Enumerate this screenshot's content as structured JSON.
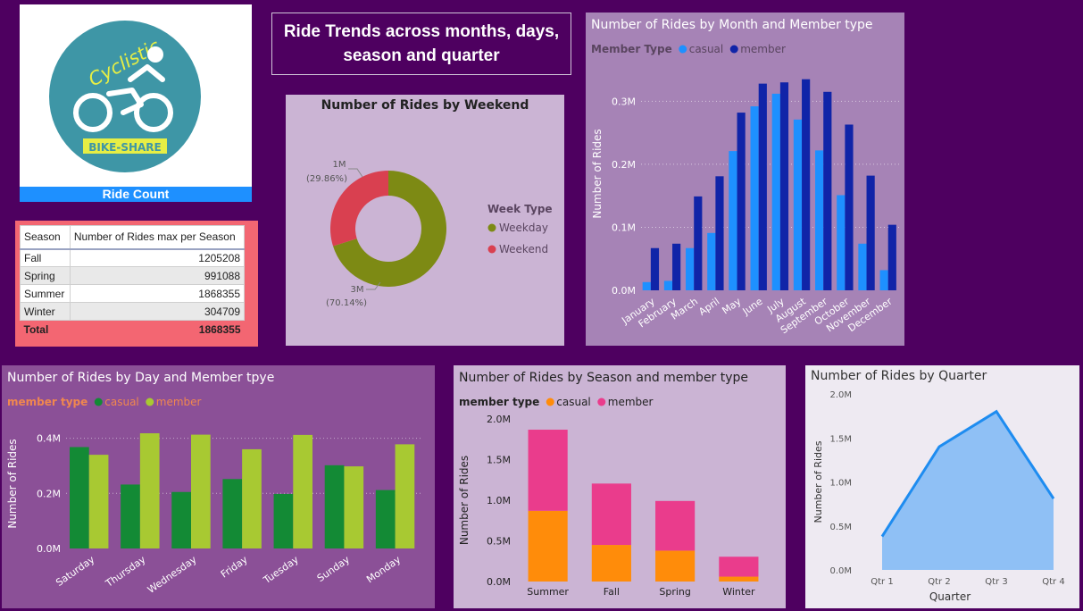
{
  "logo": {
    "text_top": "Cyclistic",
    "text_bottom": "BIKE-SHARE",
    "bar_label": "Ride Count",
    "circle_color": "#3e96a6",
    "banner_color": "#e6ee45"
  },
  "dashboard_title": "Ride Trends across months, days, season and quarter",
  "season_table": {
    "headers": [
      "Season",
      "Number of Rides max per Season"
    ],
    "rows": [
      {
        "season": "Fall",
        "value": "1205208"
      },
      {
        "season": "Spring",
        "value": "991088"
      },
      {
        "season": "Summer",
        "value": "1868355"
      },
      {
        "season": "Winter",
        "value": "304709"
      }
    ],
    "total_label": "Total",
    "total_value": "1868355"
  },
  "chart_data": [
    {
      "id": "weekend",
      "type": "pie",
      "title": "Number of Rides by Weekend",
      "legend_title": "Week Type",
      "legend_placement": "right",
      "slices": [
        {
          "name": "Weekday",
          "value": 70.14,
          "label": "3M",
          "percent_label": "(70.14%)",
          "color": "#7d8a14"
        },
        {
          "name": "Weekend",
          "value": 29.86,
          "label": "1M",
          "percent_label": "(29.86%)",
          "color": "#d94050"
        }
      ]
    },
    {
      "id": "month",
      "type": "bar",
      "title": "Number of Rides by Month and Member type",
      "legend_title": "Member Type",
      "legend_placement": "top-left",
      "xlabel": "",
      "ylabel": "Number of Rides",
      "ylim": [
        0,
        370000
      ],
      "yticks": [
        0,
        100000,
        200000,
        300000
      ],
      "ytick_labels": [
        "0.0M",
        "0.1M",
        "0.2M",
        "0.3M"
      ],
      "grid": true,
      "categories": [
        "January",
        "February",
        "March",
        "April",
        "May",
        "June",
        "July",
        "August",
        "September",
        "October",
        "November",
        "December"
      ],
      "series": [
        {
          "name": "casual",
          "color": "#1e90ff",
          "values": [
            13000,
            15000,
            67000,
            91000,
            221000,
            292000,
            312000,
            271000,
            222000,
            151000,
            74000,
            32000
          ]
        },
        {
          "name": "member",
          "color": "#1024a8",
          "values": [
            67000,
            74000,
            149000,
            181000,
            282000,
            328000,
            330000,
            335000,
            315000,
            263000,
            182000,
            104000
          ]
        }
      ]
    },
    {
      "id": "day",
      "type": "bar",
      "title": "Number of Rides by Day and Member tpye",
      "legend_title": "member type",
      "legend_placement": "top-left",
      "xlabel": "",
      "ylabel": "Number of Rides",
      "ylim": [
        0,
        470000
      ],
      "yticks": [
        0,
        200000,
        400000
      ],
      "ytick_labels": [
        "0.0M",
        "0.2M",
        "0.4M"
      ],
      "grid": true,
      "categories": [
        "Saturday",
        "Thursday",
        "Wednesday",
        "Friday",
        "Tuesday",
        "Sunday",
        "Monday"
      ],
      "series": [
        {
          "name": "casual",
          "color": "#138a35",
          "values": [
            368000,
            232000,
            205000,
            252000,
            198000,
            302000,
            212000
          ]
        },
        {
          "name": "member",
          "color": "#a8c932",
          "values": [
            340000,
            418000,
            413000,
            360000,
            412000,
            298000,
            378000
          ]
        }
      ]
    },
    {
      "id": "season",
      "type": "bar",
      "stacked": true,
      "title": "Number of Rides by Season and member type",
      "legend_title": "member type",
      "legend_placement": "top-left",
      "xlabel": "",
      "ylabel": "Number of Rides",
      "ylim": [
        0,
        2000000
      ],
      "yticks": [
        0,
        500000,
        1000000,
        1500000,
        2000000
      ],
      "ytick_labels": [
        "0.0M",
        "0.5M",
        "1.0M",
        "1.5M",
        "2.0M"
      ],
      "grid": false,
      "categories": [
        "Summer",
        "Fall",
        "Spring",
        "Winter"
      ],
      "series": [
        {
          "name": "casual",
          "color": "#ff8c0a",
          "values": [
            870000,
            450000,
            380000,
            60000
          ]
        },
        {
          "name": "member",
          "color": "#ea3c8c",
          "values": [
            998000,
            755000,
            611000,
            245000
          ]
        }
      ]
    },
    {
      "id": "quarter",
      "type": "area",
      "title": "Number of Rides by Quarter",
      "xlabel": "Quarter",
      "ylabel": "Number of Rides",
      "ylim": [
        0,
        2000000
      ],
      "yticks": [
        0,
        500000,
        1000000,
        1500000,
        2000000
      ],
      "ytick_labels": [
        "0.0M",
        "0.5M",
        "1.0M",
        "1.5M",
        "2.0M"
      ],
      "grid": false,
      "categories": [
        "Qtr 1",
        "Qtr 2",
        "Qtr 3",
        "Qtr 4"
      ],
      "series": [
        {
          "name": "",
          "color": "#1e8cf0",
          "fill": "#8fc0f5",
          "values": [
            380000,
            1400000,
            1800000,
            810000
          ]
        }
      ]
    }
  ]
}
